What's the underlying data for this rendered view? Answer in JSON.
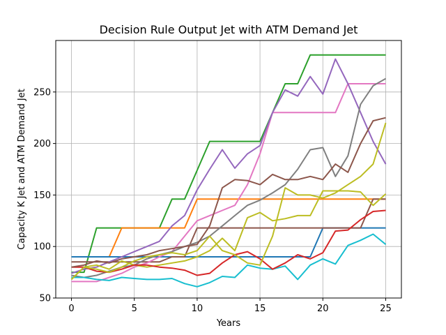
{
  "chart_data": {
    "type": "line",
    "title": "Decision Rule Output Jet with ATM Demand Jet",
    "xlabel": "Years",
    "ylabel": "Capacity K Jet and ATM Demand Jet",
    "xlim": [
      -1.25,
      26.25
    ],
    "ylim": [
      50,
      300
    ],
    "xticks": [
      0,
      5,
      10,
      15,
      20,
      25
    ],
    "yticks": [
      50,
      100,
      150,
      200,
      250
    ],
    "grid": true,
    "legend": "none",
    "x": [
      0,
      1,
      2,
      3,
      4,
      5,
      6,
      7,
      8,
      9,
      10,
      11,
      12,
      13,
      14,
      15,
      16,
      17,
      18,
      19,
      20,
      21,
      22,
      23,
      24,
      25
    ],
    "series": [
      {
        "color": "#2ca02c",
        "values": [
          75,
          75,
          118,
          118,
          118,
          118,
          118,
          118,
          146,
          146,
          174,
          202,
          202,
          202,
          202,
          202,
          230,
          258,
          258,
          286,
          286,
          286,
          286,
          286,
          286,
          286
        ]
      },
      {
        "color": "#ff7f0e",
        "values": [
          90,
          90,
          90,
          90,
          118,
          118,
          118,
          118,
          118,
          118,
          146,
          146,
          146,
          146,
          146,
          146,
          146,
          146,
          146,
          146,
          146,
          146,
          146,
          146,
          146,
          146
        ]
      },
      {
        "color": "#1f77b4",
        "values": [
          90,
          90,
          90,
          90,
          90,
          90,
          90,
          90,
          90,
          90,
          90,
          90,
          90,
          90,
          90,
          90,
          90,
          90,
          90,
          90,
          118,
          118,
          118,
          118,
          118,
          118
        ]
      },
      {
        "color": "#8c564b",
        "values": [
          85,
          85,
          85,
          85,
          85,
          85,
          85,
          85,
          90,
          90,
          118,
          118,
          118,
          118,
          118,
          118,
          118,
          118,
          118,
          118,
          118,
          118,
          118,
          118,
          146,
          146
        ]
      },
      {
        "color": "#e377c2",
        "values": [
          66,
          66,
          66,
          70,
          74,
          80,
          84,
          90,
          95,
          110,
          125,
          130,
          135,
          140,
          160,
          190,
          230,
          230,
          230,
          230,
          230,
          230,
          258,
          258,
          258,
          258
        ]
      },
      {
        "color": "#9467bd",
        "values": [
          74,
          78,
          80,
          85,
          90,
          95,
          100,
          105,
          120,
          130,
          155,
          175,
          194,
          176,
          190,
          198,
          230,
          252,
          246,
          265,
          248,
          282,
          258,
          230,
          202,
          180
        ]
      },
      {
        "color": "#7f7f7f",
        "values": [
          72,
          70,
          72,
          76,
          80,
          82,
          88,
          92,
          95,
          100,
          104,
          110,
          120,
          130,
          140,
          145,
          152,
          160,
          175,
          194,
          196,
          168,
          188,
          238,
          256,
          263
        ]
      },
      {
        "color": "#bcbd22",
        "values": [
          68,
          80,
          82,
          78,
          86,
          82,
          80,
          82,
          84,
          86,
          90,
          96,
          108,
          96,
          128,
          133,
          125,
          127,
          130,
          130,
          154,
          154,
          154,
          153,
          140,
          151
        ]
      },
      {
        "color": "#17becf",
        "values": [
          70,
          70,
          68,
          67,
          70,
          69,
          68,
          68,
          69,
          64,
          61,
          65,
          71,
          70,
          82,
          79,
          78,
          81,
          68,
          82,
          88,
          83,
          101,
          106,
          112,
          102
        ]
      },
      {
        "color": "#d62728",
        "values": [
          80,
          80,
          76,
          75,
          78,
          82,
          82,
          80,
          79,
          77,
          72,
          74,
          84,
          92,
          95,
          88,
          78,
          84,
          92,
          88,
          94,
          115,
          116,
          126,
          134,
          135
        ]
      },
      {
        "color": "#8c564b",
        "values": [
          80,
          82,
          86,
          84,
          88,
          90,
          92,
          96,
          98,
          100,
          102,
          120,
          157,
          165,
          164,
          160,
          170,
          165,
          165,
          168,
          165,
          180,
          172,
          200,
          222,
          225
        ]
      },
      {
        "color": "#bcbd22",
        "values": [
          68,
          80,
          78,
          75,
          80,
          86,
          90,
          92,
          94,
          92,
          96,
          110,
          96,
          92,
          84,
          82,
          110,
          157,
          150,
          150,
          147,
          152,
          160,
          168,
          180,
          220
        ]
      }
    ]
  }
}
